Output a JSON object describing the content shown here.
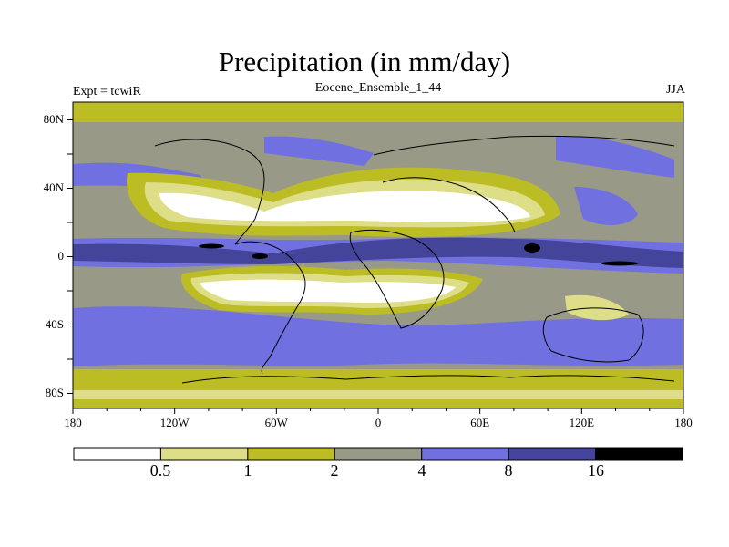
{
  "title": "Precipitation (in mm/day)",
  "left_label": "Expt = tcwiR",
  "center_label": "Eocene_Ensemble_1_44",
  "right_label": "JJA",
  "axes": {
    "lat_ticks": [
      "80N",
      "40N",
      "0",
      "40S",
      "80S"
    ],
    "lon_ticks": [
      "180",
      "120W",
      "60W",
      "0",
      "60E",
      "120E",
      "180"
    ]
  },
  "colorbar": {
    "levels": [
      "0.5",
      "1",
      "2",
      "4",
      "8",
      "16"
    ],
    "colors": [
      "#ffffff",
      "#dede88",
      "#bcbc24",
      "#999988",
      "#7070e0",
      "#44449a",
      "#000000"
    ]
  }
}
